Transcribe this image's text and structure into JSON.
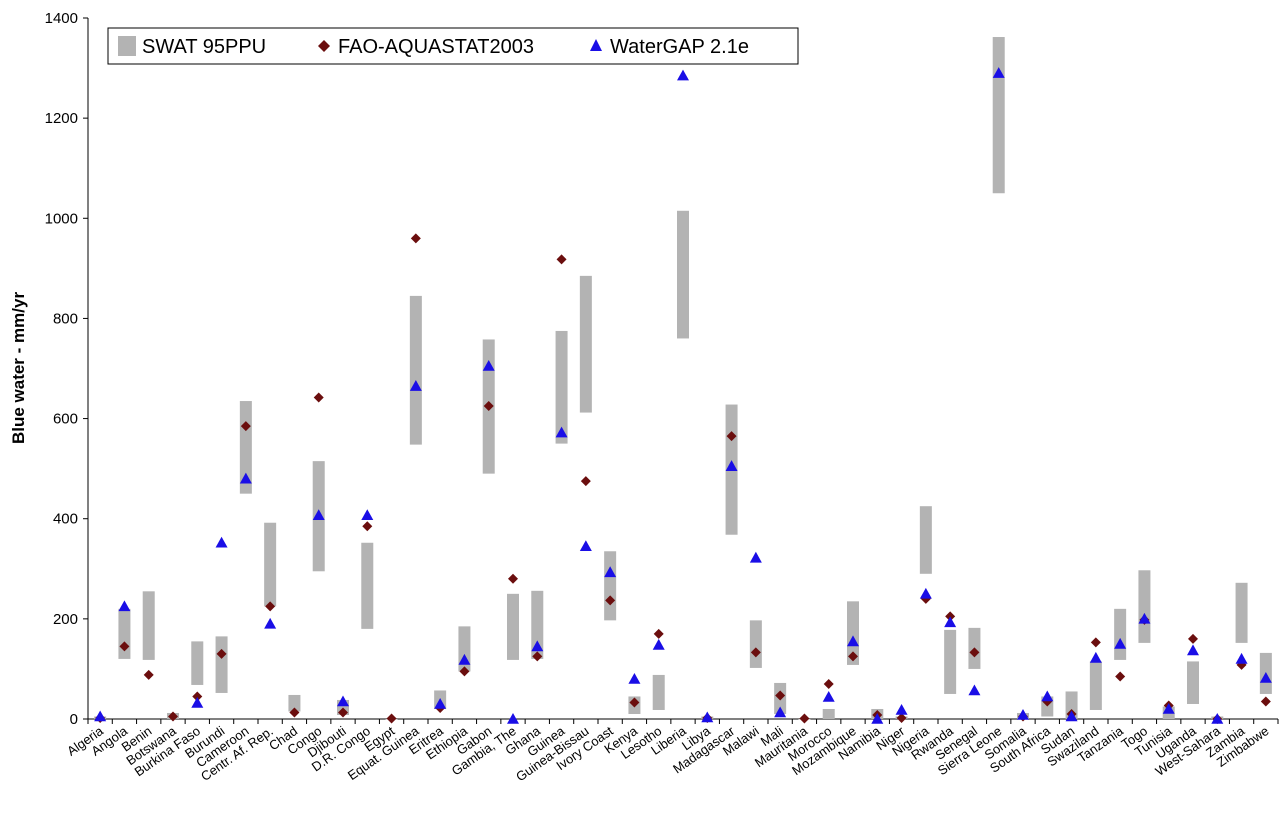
{
  "chart_data": {
    "type": "scatter",
    "title": "",
    "xlabel": "",
    "ylabel": "Blue water - mm/yr",
    "ylim": [
      0,
      1400
    ],
    "yticks": [
      0,
      200,
      400,
      600,
      800,
      1000,
      1200,
      1400
    ],
    "grid": false,
    "legend_position": "top-left",
    "categories": [
      "Algeria",
      "Angola",
      "Benin",
      "Botswana",
      "Burkina Faso",
      "Burundi",
      "Cameroon",
      "Centr. Af. Rep.",
      "Chad",
      "Congo",
      "Djibouti",
      "D.R. Congo",
      "Egypt",
      "Equat. Guinea",
      "Eritrea",
      "Ethiopia",
      "Gabon",
      "Gambia, The",
      "Ghana",
      "Guinea",
      "Guinea-Bissau",
      "Ivory Coast",
      "Kenya",
      "Lesotho",
      "Liberia",
      "Libya",
      "Madagascar",
      "Malawi",
      "Mali",
      "Mauritania",
      "Morocco",
      "Mozambique",
      "Namibia",
      "Niger",
      "Nigeria",
      "Rwanda",
      "Senegal",
      "Sierra Leone",
      "Somalia",
      "South Africa",
      "Sudan",
      "Swaziland",
      "Tanzania",
      "Togo",
      "Tunisia",
      "Uganda",
      "West-Sahara",
      "Zambia",
      "Zimbabwe"
    ],
    "series": [
      {
        "name": "SWAT 95PPU",
        "kind": "range",
        "color": "#b3b3b3",
        "low": [
          0,
          120,
          118,
          0,
          68,
          52,
          450,
          225,
          15,
          295,
          8,
          180,
          0,
          548,
          20,
          95,
          490,
          118,
          120,
          550,
          612,
          197,
          10,
          18,
          760,
          0,
          368,
          102,
          10,
          0,
          0,
          108,
          0,
          0,
          290,
          50,
          100,
          1050,
          0,
          5,
          0,
          18,
          118,
          152,
          0,
          30,
          0,
          152,
          50
        ],
        "high": [
          5,
          220,
          255,
          12,
          155,
          165,
          635,
          392,
          48,
          515,
          38,
          352,
          0,
          845,
          57,
          185,
          758,
          250,
          256,
          775,
          885,
          335,
          45,
          88,
          1015,
          5,
          628,
          197,
          72,
          0,
          20,
          235,
          20,
          5,
          425,
          178,
          182,
          1362,
          12,
          45,
          55,
          115,
          220,
          297,
          25,
          115,
          5,
          272,
          132
        ]
      },
      {
        "name": "FAO-AQUASTAT2003",
        "kind": "diamond",
        "color": "#6b0e0e",
        "values": [
          2,
          145,
          88,
          5,
          45,
          130,
          585,
          225,
          13,
          642,
          13,
          385,
          1,
          960,
          22,
          95,
          625,
          280,
          125,
          918,
          475,
          237,
          33,
          170,
          null,
          2,
          565,
          133,
          47,
          1,
          70,
          125,
          8,
          2,
          240,
          205,
          133,
          null,
          5,
          35,
          10,
          153,
          85,
          198,
          27,
          160,
          0,
          108,
          35
        ]
      },
      {
        "name": "WaterGAP 2.1e",
        "kind": "triangle",
        "color": "#1a0ee6",
        "values": [
          5,
          225,
          null,
          null,
          32,
          352,
          480,
          190,
          null,
          407,
          35,
          407,
          null,
          665,
          30,
          118,
          705,
          0,
          145,
          572,
          345,
          293,
          80,
          148,
          1285,
          3,
          505,
          322,
          13,
          null,
          44,
          155,
          0,
          18,
          250,
          193,
          57,
          1290,
          8,
          45,
          5,
          122,
          150,
          200,
          20,
          137,
          0,
          120,
          82
        ]
      }
    ]
  }
}
